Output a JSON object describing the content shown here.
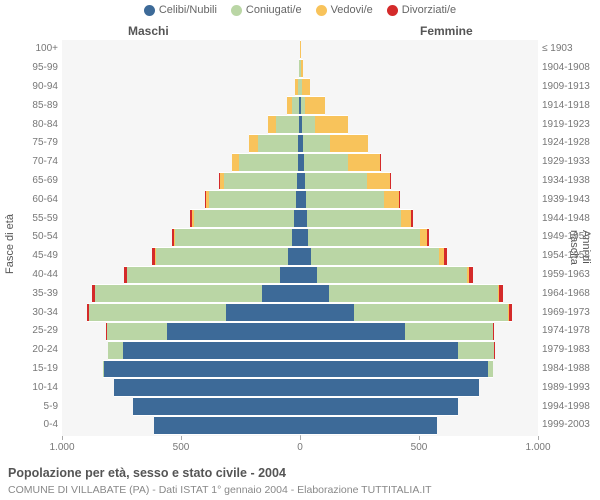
{
  "legend": [
    {
      "label": "Celibi/Nubili",
      "color": "#3d6a98"
    },
    {
      "label": "Coniugati/e",
      "color": "#bad6a5"
    },
    {
      "label": "Vedovi/e",
      "color": "#f8c35b"
    },
    {
      "label": "Divorziati/e",
      "color": "#d42a2a"
    }
  ],
  "headers": {
    "m": "Maschi",
    "f": "Femmine"
  },
  "y_axis_title_left": "Fasce di età",
  "y_axis_title_right": "Anni di nascita",
  "x_axis": {
    "ticks": [
      -1000,
      -500,
      0,
      500,
      1000
    ],
    "max": 1000
  },
  "plot_bg": "#f6f6f6",
  "row_h": 18.8,
  "rows": [
    {
      "age": "100+",
      "yr": "≤ 1903",
      "m": [
        0,
        0,
        1,
        0
      ],
      "f": [
        0,
        0,
        2,
        0
      ]
    },
    {
      "age": "95-99",
      "yr": "1904-1908",
      "m": [
        1,
        2,
        3,
        0
      ],
      "f": [
        1,
        2,
        10,
        0
      ]
    },
    {
      "age": "90-94",
      "yr": "1909-1913",
      "m": [
        2,
        8,
        12,
        0
      ],
      "f": [
        2,
        5,
        35,
        0
      ]
    },
    {
      "age": "85-89",
      "yr": "1914-1918",
      "m": [
        3,
        30,
        20,
        0
      ],
      "f": [
        5,
        18,
        80,
        0
      ]
    },
    {
      "age": "80-84",
      "yr": "1919-1923",
      "m": [
        6,
        95,
        32,
        0
      ],
      "f": [
        10,
        55,
        135,
        0
      ]
    },
    {
      "age": "75-79",
      "yr": "1924-1928",
      "m": [
        8,
        170,
        35,
        0
      ],
      "f": [
        14,
        110,
        160,
        0
      ]
    },
    {
      "age": "70-74",
      "yr": "1929-1933",
      "m": [
        10,
        245,
        30,
        3
      ],
      "f": [
        18,
        185,
        135,
        3
      ]
    },
    {
      "age": "65-69",
      "yr": "1934-1938",
      "m": [
        14,
        305,
        18,
        4
      ],
      "f": [
        22,
        260,
        95,
        4
      ]
    },
    {
      "age": "60-64",
      "yr": "1939-1943",
      "m": [
        18,
        365,
        12,
        6
      ],
      "f": [
        25,
        330,
        60,
        6
      ]
    },
    {
      "age": "55-59",
      "yr": "1944-1948",
      "m": [
        25,
        420,
        8,
        8
      ],
      "f": [
        30,
        395,
        42,
        7
      ]
    },
    {
      "age": "50-54",
      "yr": "1949-1953",
      "m": [
        35,
        490,
        5,
        10
      ],
      "f": [
        35,
        470,
        30,
        9
      ]
    },
    {
      "age": "45-49",
      "yr": "1954-1958",
      "m": [
        50,
        555,
        3,
        12
      ],
      "f": [
        45,
        540,
        20,
        12
      ]
    },
    {
      "age": "40-44",
      "yr": "1959-1963",
      "m": [
        85,
        640,
        2,
        14
      ],
      "f": [
        70,
        630,
        12,
        14
      ]
    },
    {
      "age": "35-39",
      "yr": "1964-1968",
      "m": [
        160,
        700,
        1,
        15
      ],
      "f": [
        120,
        710,
        8,
        15
      ]
    },
    {
      "age": "30-34",
      "yr": "1969-1973",
      "m": [
        310,
        575,
        0,
        12
      ],
      "f": [
        225,
        650,
        4,
        12
      ]
    },
    {
      "age": "25-29",
      "yr": "1974-1978",
      "m": [
        560,
        250,
        0,
        5
      ],
      "f": [
        440,
        370,
        1,
        6
      ]
    },
    {
      "age": "20-24",
      "yr": "1979-1983",
      "m": [
        745,
        60,
        0,
        1
      ],
      "f": [
        665,
        150,
        0,
        2
      ]
    },
    {
      "age": "15-19",
      "yr": "1984-1988",
      "m": [
        825,
        4,
        0,
        0
      ],
      "f": [
        790,
        20,
        0,
        0
      ]
    },
    {
      "age": "10-14",
      "yr": "1989-1993",
      "m": [
        780,
        0,
        0,
        0
      ],
      "f": [
        750,
        0,
        0,
        0
      ]
    },
    {
      "age": "5-9",
      "yr": "1994-1998",
      "m": [
        700,
        0,
        0,
        0
      ],
      "f": [
        665,
        0,
        0,
        0
      ]
    },
    {
      "age": "0-4",
      "yr": "1999-2003",
      "m": [
        615,
        0,
        0,
        0
      ],
      "f": [
        575,
        0,
        0,
        0
      ]
    }
  ],
  "footer": {
    "line1": "Popolazione per età, sesso e stato civile - 2004",
    "line2": "COMUNE DI VILLABATE (PA) - Dati ISTAT 1° gennaio 2004 - Elaborazione TUTTITALIA.IT"
  }
}
